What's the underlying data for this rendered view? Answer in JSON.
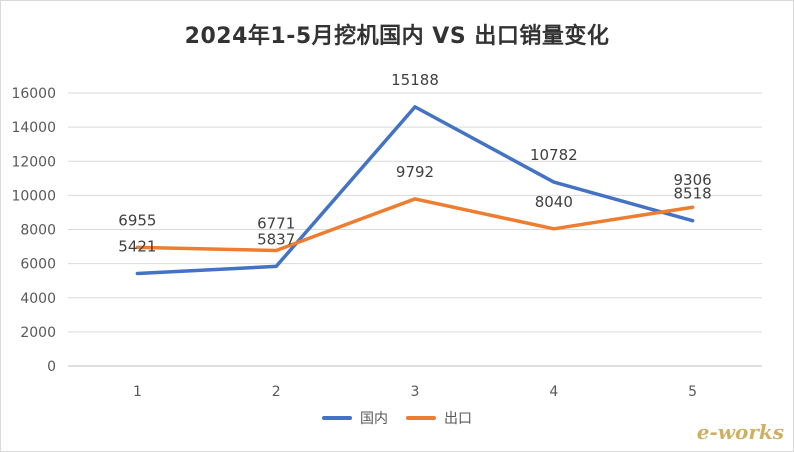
{
  "chart_data": {
    "type": "line",
    "title": "2024年1-5月挖机国内 VS 出口销量变化",
    "categories": [
      "1",
      "2",
      "3",
      "4",
      "5"
    ],
    "series": [
      {
        "name": "国内",
        "color": "#4472c4",
        "values": [
          5421,
          5837,
          15188,
          10782,
          8518
        ]
      },
      {
        "name": "出口",
        "color": "#ed7d31",
        "values": [
          6955,
          6771,
          9792,
          8040,
          9306
        ]
      }
    ],
    "ylim": [
      0,
      16000
    ],
    "yticks": [
      0,
      2000,
      4000,
      6000,
      8000,
      10000,
      12000,
      14000,
      16000
    ],
    "grid": true,
    "legend_position": "bottom"
  },
  "watermark": "e-works"
}
